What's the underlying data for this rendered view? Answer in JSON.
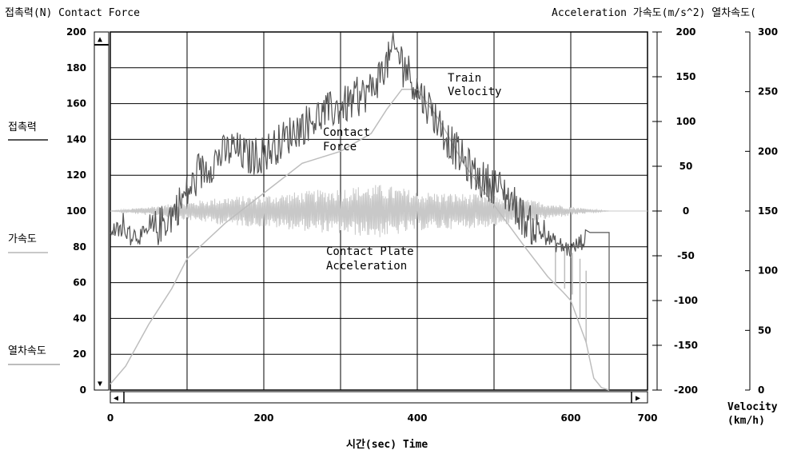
{
  "header": {
    "left_title": "접촉력(N) Contact Force",
    "right_title": "Acceleration 가속도(m/s^2) 열차속도("
  },
  "legend": {
    "contact_force": "접촉력",
    "acceleration": "가속도",
    "train_speed": "열차속도"
  },
  "axes": {
    "x_label": "시간(sec) Time",
    "velocity_label_1": "Velocity",
    "velocity_label_2": "(km/h)"
  },
  "annotations": {
    "train_velocity_1": "Train",
    "train_velocity_2": "Velocity",
    "contact_force_1": "Contact",
    "contact_force_2": "Force",
    "accel_1": "Contact Plate",
    "accel_2": "Acceleration"
  },
  "colors": {
    "contact_force": "#555555",
    "acceleration": "#c8c8c8",
    "velocity": "#bdbdbd",
    "grid": "#000000"
  },
  "chart_data": {
    "type": "line",
    "xlabel": "시간(sec) Time",
    "xlim": [
      0,
      700
    ],
    "x_ticks": [
      "0",
      "200",
      "400",
      "600",
      "700"
    ],
    "y_left": {
      "label": "접촉력(N) Contact Force",
      "lim": [
        0,
        200
      ],
      "ticks": [
        "0",
        "20",
        "40",
        "60",
        "80",
        "100",
        "120",
        "140",
        "160",
        "180",
        "200"
      ]
    },
    "y_right_accel": {
      "label": "Acceleration 가속도(m/s^2)",
      "lim": [
        -200,
        200
      ],
      "ticks": [
        "-200",
        "-150",
        "-100",
        "-50",
        "0",
        "50",
        "100",
        "150",
        "200"
      ]
    },
    "y_right_velocity": {
      "label": "Velocity (km/h)",
      "lim": [
        0,
        300
      ],
      "ticks": [
        "0",
        "50",
        "100",
        "150",
        "200",
        "250",
        "300"
      ]
    },
    "grid": true,
    "series": [
      {
        "name": "접촉력",
        "axis": "left",
        "x": [
          0,
          20,
          40,
          60,
          80,
          100,
          120,
          140,
          160,
          180,
          200,
          220,
          240,
          260,
          280,
          300,
          320,
          340,
          360,
          370,
          380,
          400,
          420,
          440,
          460,
          480,
          500,
          520,
          540,
          560,
          580,
          600,
          620,
          625,
          630,
          650
        ],
        "y": [
          90,
          88,
          86,
          90,
          98,
          110,
          122,
          130,
          135,
          130,
          132,
          138,
          145,
          150,
          155,
          158,
          162,
          168,
          182,
          190,
          185,
          168,
          155,
          140,
          128,
          118,
          115,
          108,
          95,
          88,
          82,
          78,
          85,
          88,
          88,
          88
        ]
      },
      {
        "name": "가속도",
        "axis": "right_accel",
        "x": [
          0,
          20,
          50,
          100,
          150,
          200,
          250,
          300,
          350,
          380,
          400,
          450,
          500,
          550,
          600,
          630,
          650,
          700
        ],
        "amplitude": [
          0,
          2,
          5,
          10,
          16,
          18,
          22,
          26,
          30,
          26,
          22,
          20,
          18,
          12,
          5,
          2,
          0,
          0
        ]
      },
      {
        "name": "열차속도",
        "axis": "right_velocity",
        "x": [
          0,
          20,
          50,
          80,
          100,
          150,
          200,
          250,
          300,
          340,
          360,
          380,
          400,
          430,
          460,
          500,
          540,
          570,
          590,
          600,
          620,
          630,
          640,
          650
        ],
        "y": [
          5,
          20,
          55,
          85,
          110,
          140,
          165,
          190,
          200,
          215,
          235,
          252,
          252,
          225,
          190,
          155,
          120,
          95,
          82,
          75,
          40,
          10,
          2,
          0
        ]
      }
    ]
  }
}
